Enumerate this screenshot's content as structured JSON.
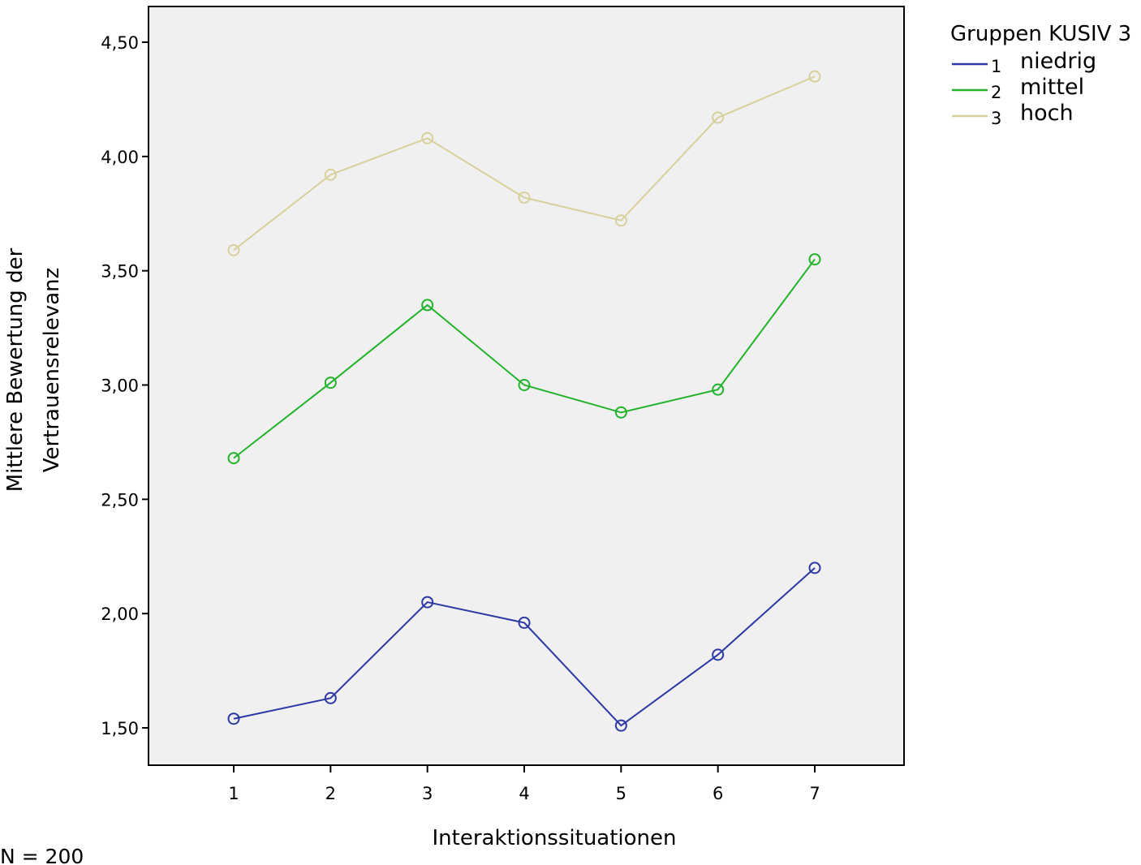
{
  "chart_data": {
    "type": "line",
    "xlabel": "Interaktionssituationen",
    "ylabel_line1": "Mittlere Bewertung der",
    "ylabel_line2": "Vertrauensrelevanz",
    "categories": [
      "1",
      "2",
      "3",
      "4",
      "5",
      "6",
      "7"
    ],
    "ylim": [
      1.35,
      4.65
    ],
    "yticks": [
      1.5,
      2.0,
      2.5,
      3.0,
      3.5,
      4.0,
      4.5
    ],
    "ytick_labels": [
      "1,50",
      "2,00",
      "2,50",
      "3,00",
      "3,50",
      "4,00",
      "4,50"
    ],
    "grid": false,
    "legend_placement": "right",
    "legend_title": "Gruppen KUSIV 3",
    "series": [
      {
        "code": "1",
        "name": "niedrig",
        "color": "#2b38a5",
        "values": [
          1.54,
          1.63,
          2.05,
          1.96,
          1.51,
          1.82,
          2.2
        ]
      },
      {
        "code": "2",
        "name": "mittel",
        "color": "#22b32a",
        "values": [
          2.68,
          3.01,
          3.35,
          3.0,
          2.88,
          2.98,
          3.55
        ]
      },
      {
        "code": "3",
        "name": "hoch",
        "color": "#d8d09a",
        "values": [
          3.59,
          3.92,
          4.08,
          3.82,
          3.72,
          4.17,
          4.35
        ]
      }
    ],
    "plot_background": "#f0f0f0",
    "footnote": "N = 200"
  }
}
